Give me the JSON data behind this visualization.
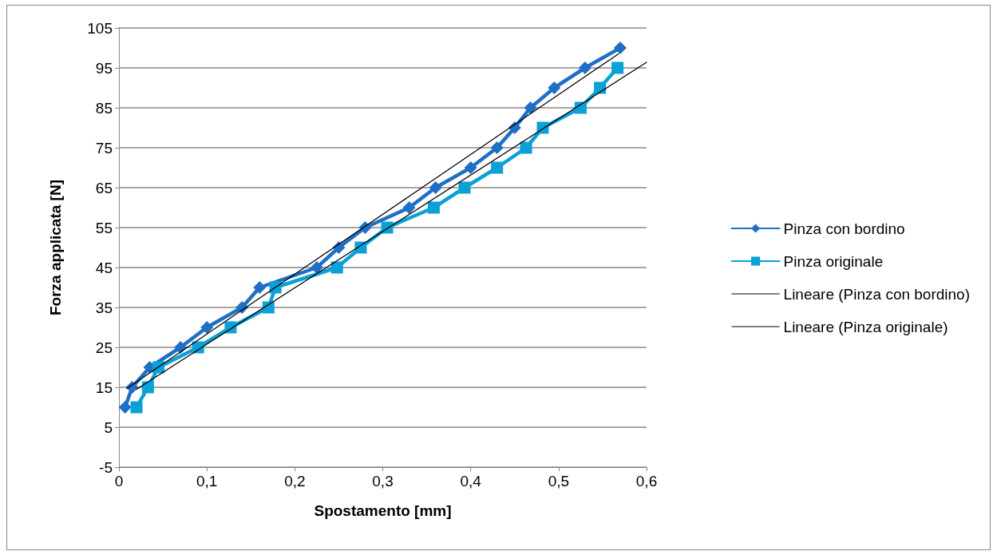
{
  "chart_data": {
    "type": "line",
    "xlabel": "Spostamento [mm]",
    "ylabel": "Forza applicata [N]",
    "xlim": [
      0,
      0.6
    ],
    "xticks": [
      {
        "value": 0,
        "label": "0"
      },
      {
        "value": 0.1,
        "label": "0,1"
      },
      {
        "value": 0.2,
        "label": "0,2"
      },
      {
        "value": 0.3,
        "label": "0,3"
      },
      {
        "value": 0.4,
        "label": "0,4"
      },
      {
        "value": 0.5,
        "label": "0,5"
      },
      {
        "value": 0.6,
        "label": "0,6"
      }
    ],
    "ylim": [
      -5,
      105
    ],
    "yticks": [
      -5,
      5,
      15,
      25,
      35,
      45,
      55,
      65,
      75,
      85,
      95,
      105
    ],
    "grid": "y",
    "legend": "right",
    "series": [
      {
        "name": "Pinza con bordino",
        "color": "#1f6fc5",
        "marker": "diamond",
        "x": [
          0.007,
          0.015,
          0.035,
          0.07,
          0.1,
          0.14,
          0.16,
          0.225,
          0.25,
          0.28,
          0.33,
          0.36,
          0.4,
          0.43,
          0.45,
          0.468,
          0.495,
          0.53,
          0.57
        ],
        "values": [
          10,
          15,
          20,
          25,
          30,
          35,
          40,
          45,
          50,
          55,
          60,
          65,
          70,
          75,
          80,
          85,
          90,
          95,
          100
        ]
      },
      {
        "name": "Pinza originale",
        "color": "#0aa0d8",
        "marker": "square",
        "x": [
          0.02,
          0.033,
          0.045,
          0.09,
          0.127,
          0.17,
          0.178,
          0.248,
          0.275,
          0.305,
          0.358,
          0.393,
          0.43,
          0.463,
          0.482,
          0.525,
          0.547,
          0.567
        ],
        "values": [
          10,
          15,
          20,
          25,
          30,
          35,
          40,
          45,
          50,
          55,
          60,
          65,
          70,
          75,
          80,
          85,
          90,
          95
        ]
      },
      {
        "name": "Lineare (Pinza con bordino)",
        "color": "#000000",
        "marker": "none",
        "x": [
          0.009,
          0.568
        ],
        "values": [
          14.7,
          98.5
        ]
      },
      {
        "name": "Lineare (Pinza originale)",
        "color": "#000000",
        "marker": "none",
        "x": [
          0.02,
          0.6
        ],
        "values": [
          14.5,
          96.4
        ]
      }
    ]
  }
}
